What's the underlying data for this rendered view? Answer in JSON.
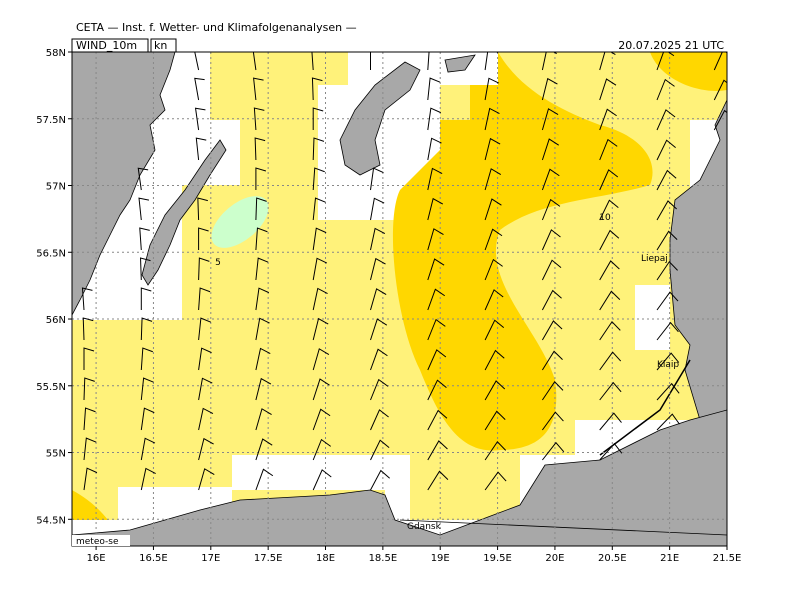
{
  "header": {
    "title": "CETA — Inst. f. Wetter- und Klimafolgenanalysen —",
    "field": "WIND_10m",
    "unit": "kn",
    "valid_time": "20.07.2025 21 UTC"
  },
  "map": {
    "lon_range": [
      15.79,
      21.5
    ],
    "lat_range": [
      54.3,
      58
    ],
    "lat_ticks": [
      {
        "value": 58,
        "label": "58N"
      },
      {
        "value": 57.5,
        "label": "57.5N"
      },
      {
        "value": 57,
        "label": "57N"
      },
      {
        "value": 56.5,
        "label": "56.5N"
      },
      {
        "value": 56,
        "label": "56N"
      },
      {
        "value": 55.5,
        "label": "55.5N"
      },
      {
        "value": 55,
        "label": "55N"
      },
      {
        "value": 54.5,
        "label": "54.5N"
      }
    ],
    "lon_ticks": [
      {
        "value": 16,
        "label": "16E"
      },
      {
        "value": 16.5,
        "label": "16.5E"
      },
      {
        "value": 17,
        "label": "17E"
      },
      {
        "value": 17.5,
        "label": "17.5E"
      },
      {
        "value": 18,
        "label": "18E"
      },
      {
        "value": 18.5,
        "label": "18.5E"
      },
      {
        "value": 19,
        "label": "19E"
      },
      {
        "value": 19.5,
        "label": "19.5E"
      },
      {
        "value": 20,
        "label": "20E"
      },
      {
        "value": 20.5,
        "label": "20.5E"
      },
      {
        "value": 21,
        "label": "21E"
      },
      {
        "value": 21.5,
        "label": "21.5E"
      }
    ]
  },
  "contour_labels": [
    5,
    10
  ],
  "places": [
    "Liepaj",
    "Klaip",
    "Gdansk"
  ],
  "credit": "meteo-se"
}
